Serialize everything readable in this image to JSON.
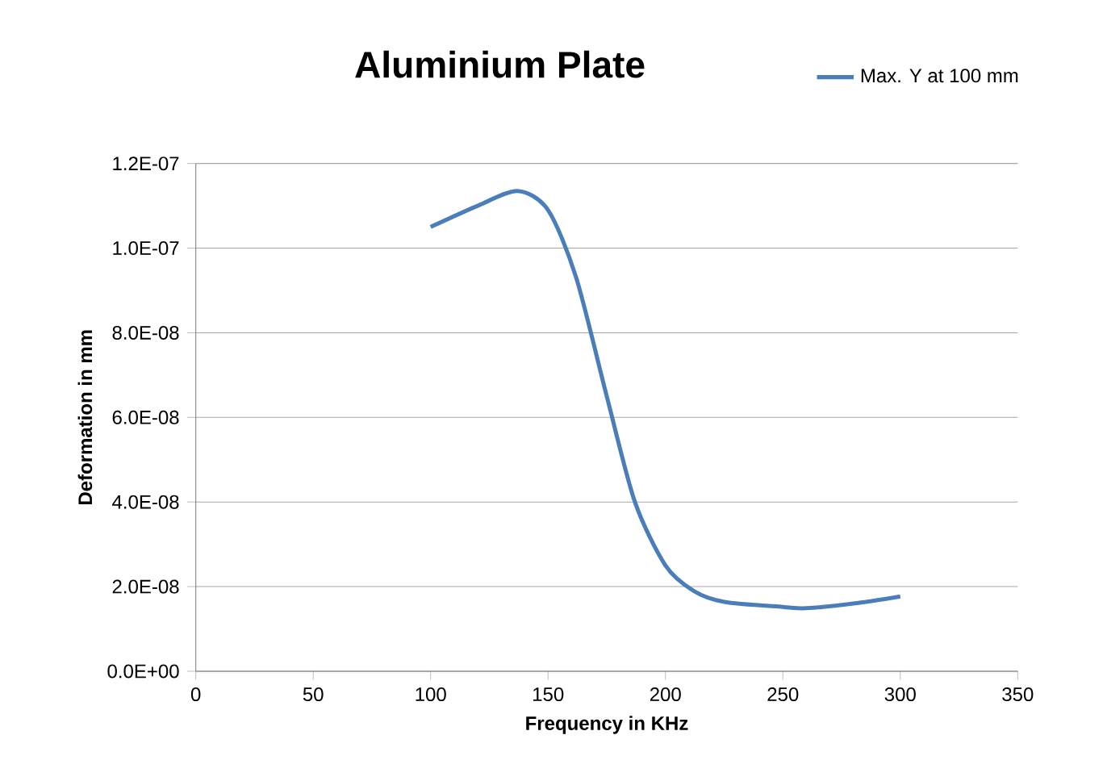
{
  "chart_data": {
    "type": "line",
    "title": "Aluminium Plate",
    "xlabel": "Frequency in KHz",
    "ylabel": "Deformation in mm",
    "xlim": [
      0,
      350
    ],
    "xticks": [
      0,
      50,
      100,
      150,
      200,
      250,
      300,
      350
    ],
    "ylim": [
      0,
      1.2e-07
    ],
    "yticks": [
      {
        "value": 0,
        "label": "0.0E+00"
      },
      {
        "value": 2e-08,
        "label": "2.0E-08"
      },
      {
        "value": 4e-08,
        "label": "4.0E-08"
      },
      {
        "value": 6e-08,
        "label": "6.0E-08"
      },
      {
        "value": 8e-08,
        "label": "8.0E-08"
      },
      {
        "value": 1e-07,
        "label": "1.0E-07"
      },
      {
        "value": 1.2e-07,
        "label": "1.2E-07"
      }
    ],
    "grid": "y",
    "legend": "top right",
    "x": [
      100,
      120,
      137,
      150,
      162,
      175,
      187,
      200,
      212,
      225,
      250,
      260,
      280,
      300
    ],
    "series": [
      {
        "name": "Max. Y at 100 mm",
        "color": "#4a7ebb",
        "values": [
          1.05e-07,
          1.1e-07,
          1.135e-07,
          1.09e-07,
          9.3e-08,
          6.5e-08,
          4e-08,
          2.5e-08,
          1.9e-08,
          1.64e-08,
          1.52e-08,
          1.49e-08,
          1.6e-08,
          1.77e-08
        ]
      }
    ]
  }
}
